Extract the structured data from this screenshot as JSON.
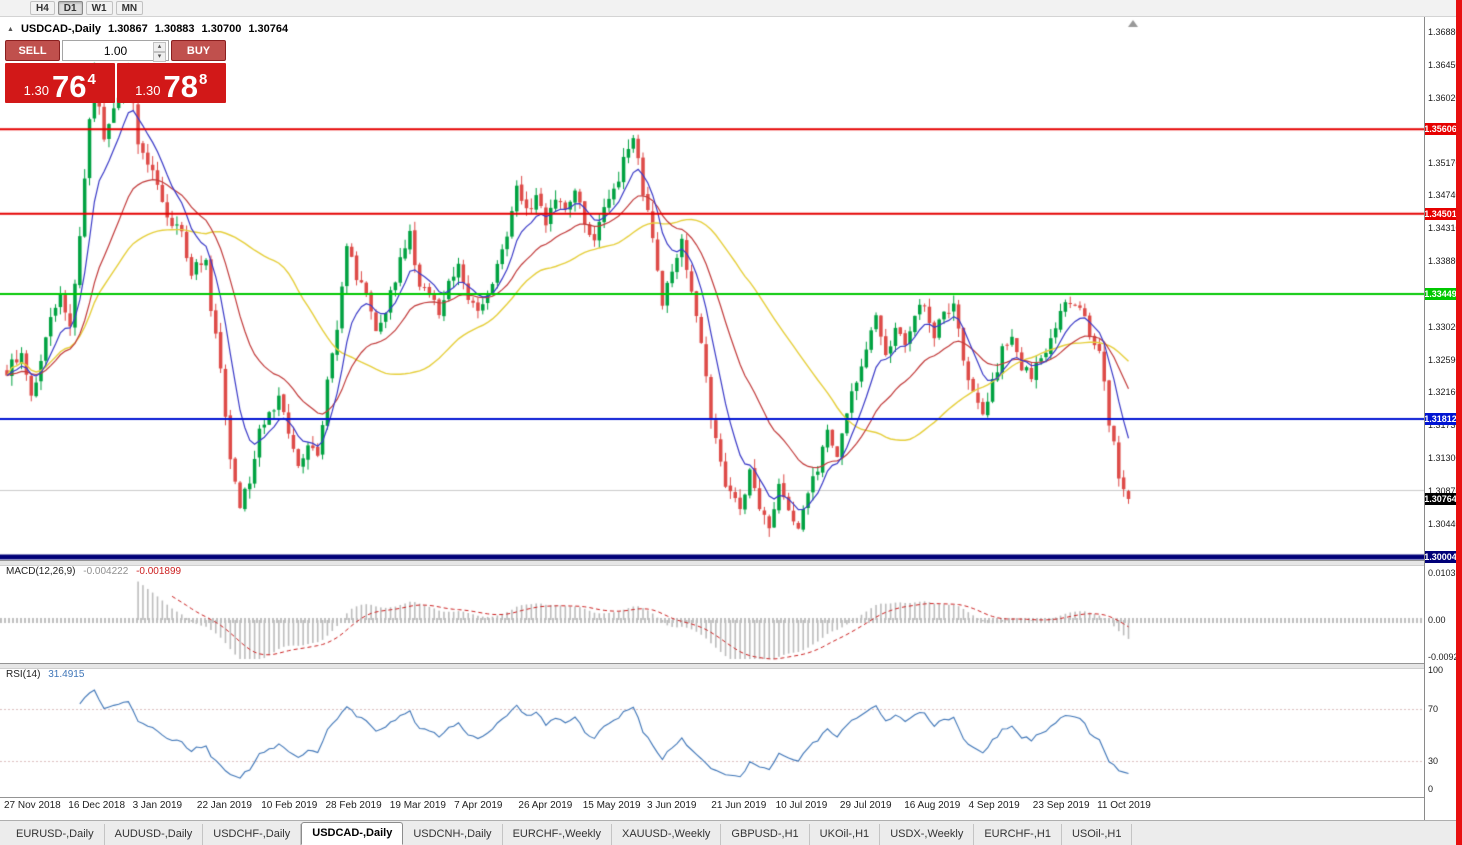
{
  "toolbar": {
    "timeframes": [
      "H4",
      "D1",
      "W1",
      "MN"
    ],
    "active": "D1"
  },
  "chart_header": {
    "symbol": "USDCAD-,Daily",
    "open": "1.30867",
    "high": "1.30883",
    "low": "1.30700",
    "close": "1.30764"
  },
  "trade_panel": {
    "sell_label": "SELL",
    "buy_label": "BUY",
    "volume": "1.00",
    "sell_price_prefix": "1.30",
    "sell_price_big": "76",
    "sell_price_sup": "4",
    "buy_price_prefix": "1.30",
    "buy_price_big": "78",
    "buy_price_sup": "8",
    "button_color": "#c0504d",
    "panel_color": "#d21818",
    "up_icon": "▴",
    "down_icon": "▾"
  },
  "macd_panel": {
    "name": "MACD(12,26,9)",
    "main_value": "-0.004222",
    "signal_value": "-0.001899",
    "axis_labels": [
      "0.010311",
      "0.00",
      "-0.009203"
    ],
    "histogram_color": "#bdbdbd",
    "signal_color": "#cc2020"
  },
  "rsi_panel": {
    "name": "RSI(14)",
    "value": "31.4915",
    "axis_labels": [
      "100",
      "70",
      "30",
      "0"
    ],
    "line_color": "#3f76b8",
    "levels": [
      70,
      30
    ]
  },
  "tabs": {
    "items": [
      "EURUSD-,Daily",
      "AUDUSD-,Daily",
      "USDCHF-,Daily",
      "USDCAD-,Daily",
      "USDCNH-,Daily",
      "EURCHF-,Weekly",
      "XAUUSD-,Weekly",
      "GBPUSD-,H1",
      "UKOil-,H1",
      "USDX-,Weekly",
      "EURCHF-,H1",
      "USOil-,H1"
    ],
    "active": "USDCAD-,Daily"
  },
  "chart_data": {
    "type": "candlestick",
    "title": "USDCAD-,Daily",
    "ohlc_current": {
      "open": 1.30867,
      "high": 1.30883,
      "low": 1.307,
      "close": 1.30764
    },
    "num_candles": 232,
    "up_color": "#00A241",
    "down_color": "#DE4B48",
    "y_axis": {
      "tick_labels": [
        "1.36880",
        "1.36450",
        "1.36020",
        "1.35170",
        "1.34740",
        "1.34310",
        "1.33880",
        "1.33020",
        "1.32590",
        "1.32160",
        "1.31730",
        "1.31300",
        "1.30870",
        "1.30440"
      ],
      "visible_high": 1.3702,
      "visible_low": 1.2996
    },
    "x_axis_dates": [
      "27 Nov 2018",
      "16 Dec 2018",
      "3 Jan 2019",
      "22 Jan 2019",
      "10 Feb 2019",
      "28 Feb 2019",
      "19 Mar 2019",
      "7 Apr 2019",
      "26 Apr 2019",
      "15 May 2019",
      "3 Jun 2019",
      "21 Jun 2019",
      "10 Jul 2019",
      "29 Jul 2019",
      "16 Aug 2019",
      "4 Sep 2019",
      "23 Sep 2019",
      "11 Oct 2019"
    ],
    "levels": [
      {
        "label": "1.35606",
        "price": 1.35606,
        "color": "#e60000",
        "width": 2
      },
      {
        "label": "1.34501",
        "price": 1.34501,
        "color": "#e60000",
        "width": 2
      },
      {
        "label": "1.33449",
        "price": 1.33449,
        "color": "#00c800",
        "width": 2
      },
      {
        "label": "1.31812",
        "price": 1.31812,
        "color": "#0014d2",
        "width": 2
      },
      {
        "label": "1.30004",
        "price": 1.30004,
        "color": "#000078",
        "width": 5
      }
    ],
    "current_price": {
      "label": "1.30764",
      "price": 1.30764,
      "bg": "#000000"
    },
    "ask_line": {
      "price": 1.30883,
      "color": "#cccccc"
    },
    "moving_averages": [
      {
        "period": 42,
        "type": "sma",
        "color": "#e6cf3c"
      },
      {
        "period": 22,
        "type": "ema",
        "color": "#c23b3b"
      },
      {
        "period": 8,
        "type": "ema",
        "color": "#3a3ac8"
      }
    ],
    "price_anchors": [
      [
        0,
        1.3245
      ],
      [
        3,
        1.327
      ],
      [
        5,
        1.3205
      ],
      [
        8,
        1.329
      ],
      [
        11,
        1.3345
      ],
      [
        13,
        1.331
      ],
      [
        15,
        1.342
      ],
      [
        18,
        1.364
      ],
      [
        20,
        1.3545
      ],
      [
        22,
        1.359
      ],
      [
        25,
        1.364
      ],
      [
        27,
        1.3545
      ],
      [
        30,
        1.35
      ],
      [
        33,
        1.345
      ],
      [
        36,
        1.342
      ],
      [
        38,
        1.3375
      ],
      [
        41,
        1.339
      ],
      [
        42,
        1.333
      ],
      [
        44,
        1.324
      ],
      [
        46,
        1.313
      ],
      [
        48,
        1.307
      ],
      [
        50,
        1.31
      ],
      [
        52,
        1.3165
      ],
      [
        54,
        1.3185
      ],
      [
        56,
        1.321
      ],
      [
        58,
        1.316
      ],
      [
        60,
        1.3115
      ],
      [
        62,
        1.314
      ],
      [
        64,
        1.313
      ],
      [
        66,
        1.323
      ],
      [
        68,
        1.329
      ],
      [
        70,
        1.341
      ],
      [
        72,
        1.337
      ],
      [
        74,
        1.334
      ],
      [
        76,
        1.329
      ],
      [
        78,
        1.332
      ],
      [
        81,
        1.339
      ],
      [
        83,
        1.342
      ],
      [
        85,
        1.336
      ],
      [
        87,
        1.334
      ],
      [
        89,
        1.332
      ],
      [
        91,
        1.3355
      ],
      [
        93,
        1.3385
      ],
      [
        95,
        1.3345
      ],
      [
        97,
        1.333
      ],
      [
        99,
        1.3345
      ],
      [
        101,
        1.338
      ],
      [
        103,
        1.342
      ],
      [
        105,
        1.348
      ],
      [
        107,
        1.345
      ],
      [
        109,
        1.3475
      ],
      [
        111,
        1.344
      ],
      [
        113,
        1.3465
      ],
      [
        115,
        1.345
      ],
      [
        117,
        1.348
      ],
      [
        119,
        1.344
      ],
      [
        121,
        1.3415
      ],
      [
        123,
        1.3455
      ],
      [
        125,
        1.348
      ],
      [
        127,
        1.352
      ],
      [
        129,
        1.355
      ],
      [
        131,
        1.348
      ],
      [
        133,
        1.342
      ],
      [
        135,
        1.333
      ],
      [
        137,
        1.338
      ],
      [
        139,
        1.341
      ],
      [
        141,
        1.334
      ],
      [
        143,
        1.328
      ],
      [
        145,
        1.318
      ],
      [
        147,
        1.312
      ],
      [
        149,
        1.308
      ],
      [
        151,
        1.306
      ],
      [
        153,
        1.311
      ],
      [
        155,
        1.307
      ],
      [
        157,
        1.304
      ],
      [
        159,
        1.309
      ],
      [
        161,
        1.306
      ],
      [
        163,
        1.3035
      ],
      [
        165,
        1.308
      ],
      [
        167,
        1.312
      ],
      [
        169,
        1.316
      ],
      [
        171,
        1.313
      ],
      [
        173,
        1.319
      ],
      [
        175,
        1.323
      ],
      [
        177,
        1.328
      ],
      [
        179,
        1.331
      ],
      [
        181,
        1.326
      ],
      [
        183,
        1.3305
      ],
      [
        185,
        1.3275
      ],
      [
        187,
        1.332
      ],
      [
        189,
        1.3335
      ],
      [
        191,
        1.329
      ],
      [
        193,
        1.332
      ],
      [
        195,
        1.333
      ],
      [
        197,
        1.326
      ],
      [
        199,
        1.321
      ],
      [
        201,
        1.318
      ],
      [
        203,
        1.323
      ],
      [
        205,
        1.327
      ],
      [
        207,
        1.329
      ],
      [
        209,
        1.325
      ],
      [
        211,
        1.3235
      ],
      [
        213,
        1.326
      ],
      [
        215,
        1.329
      ],
      [
        217,
        1.332
      ],
      [
        219,
        1.334
      ],
      [
        221,
        1.333
      ],
      [
        223,
        1.329
      ],
      [
        225,
        1.327
      ],
      [
        227,
        1.318
      ],
      [
        229,
        1.311
      ],
      [
        231,
        1.30764
      ]
    ],
    "indicators": {
      "macd": {
        "fast": 12,
        "slow": 26,
        "signal": 9
      },
      "rsi": {
        "period": 14
      }
    }
  }
}
